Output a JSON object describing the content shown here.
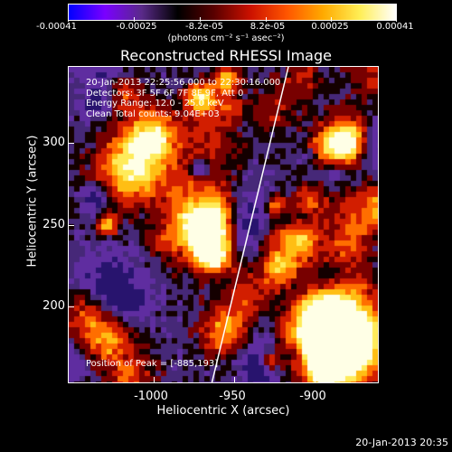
{
  "colorbar": {
    "tick_labels": [
      "-0.00041",
      "-0.00025",
      "-8.2e-05",
      "8.2e-05",
      "0.00025",
      "0.00041"
    ],
    "units": "(photons cm⁻² s⁻¹ asec⁻²)",
    "colors": [
      "#0000ff",
      "#7a00ff",
      "#5a2a8a",
      "#000000",
      "#5a0000",
      "#cc1100",
      "#ff5500",
      "#ffaa00",
      "#ffee55",
      "#ffffff"
    ]
  },
  "title": "Reconstructed RHESSI Image",
  "info": {
    "time_range": "20-Jan-2013 22:25:56.000 to 22:30:16.000",
    "detectors": "Detectors: 3F 5F 6F 7F 8F 9F, Att 0",
    "energy": "Energy Range: 12.0 - 25.0 keV",
    "method": "Clean     Total counts: 9.04E+03"
  },
  "peak": "Position of Peak = [-885,193]",
  "axes": {
    "xlabel": "Heliocentric X (arcsec)",
    "ylabel": "Heliocentric Y (arcsec)",
    "x_ticks": [
      "-1000",
      "-950",
      "-900"
    ],
    "y_ticks": [
      "300",
      "250",
      "200"
    ],
    "xlim": [
      -1047,
      -860
    ],
    "ylim": [
      155,
      319
    ]
  },
  "footer_date": "20-Jan-2013 20:35"
}
